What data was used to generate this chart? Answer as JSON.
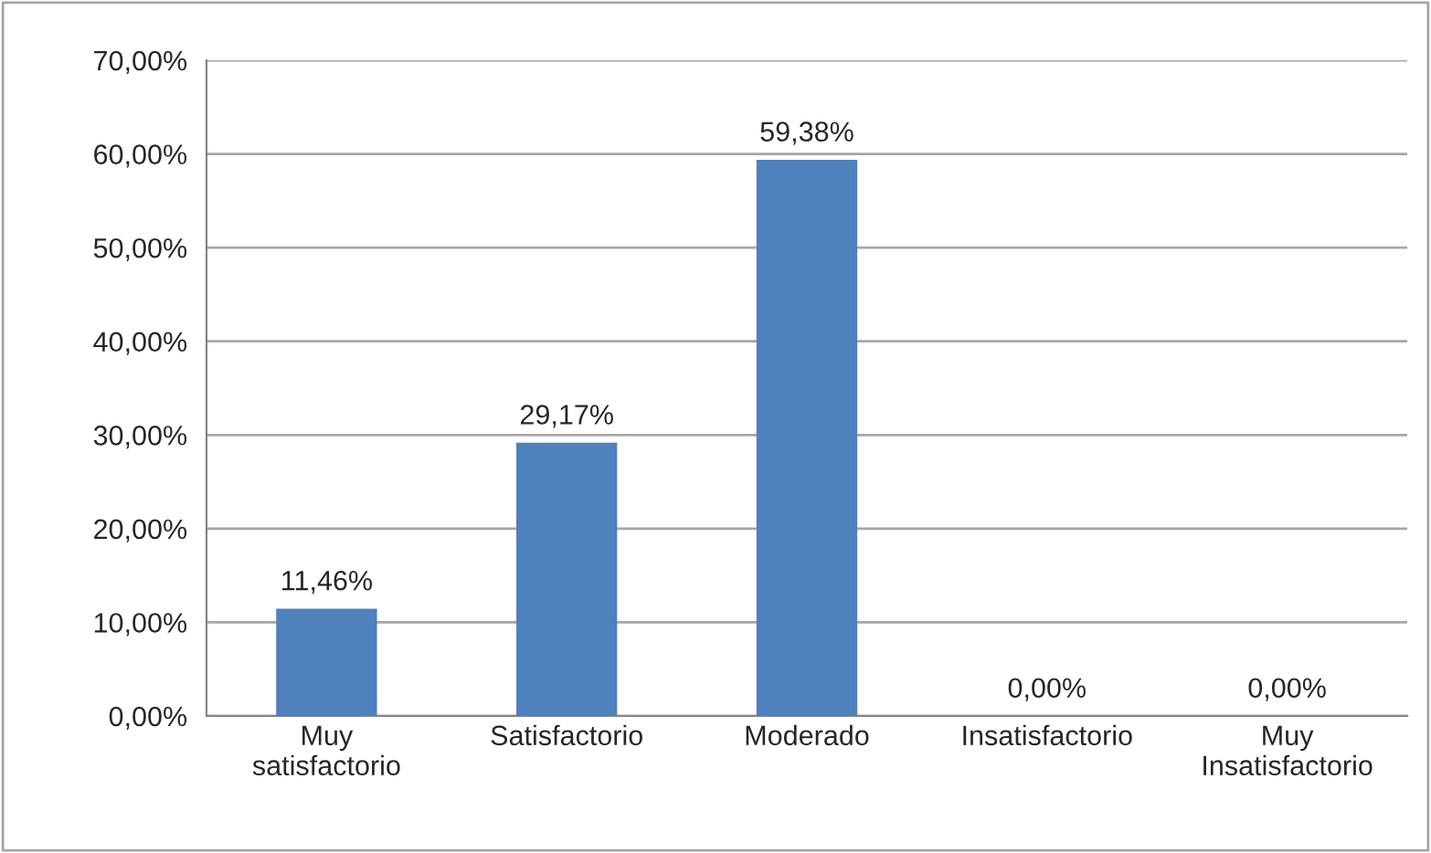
{
  "chart_data": {
    "type": "bar",
    "categories": [
      "Muy\nsatisfactorio",
      "Satisfactorio",
      "Moderado",
      "Insatisfactorio",
      "Muy\nInsatisfactorio"
    ],
    "values": [
      11.46,
      29.17,
      59.38,
      0,
      0
    ],
    "value_labels": [
      "11,46%",
      "29,17%",
      "59,38%",
      "0,00%",
      "0,00%"
    ],
    "color": "#4f81bd",
    "ylim": [
      0,
      70
    ],
    "yticks": [
      {
        "value": 0,
        "label": "0,00%"
      },
      {
        "value": 10,
        "label": "10,00%"
      },
      {
        "value": 20,
        "label": "20,00%"
      },
      {
        "value": 30,
        "label": "30,00%"
      },
      {
        "value": 40,
        "label": "40,00%"
      },
      {
        "value": 50,
        "label": "50,00%"
      },
      {
        "value": 60,
        "label": "60,00%"
      },
      {
        "value": 70,
        "label": "70,00%"
      }
    ],
    "grid": "y",
    "legend": false
  }
}
